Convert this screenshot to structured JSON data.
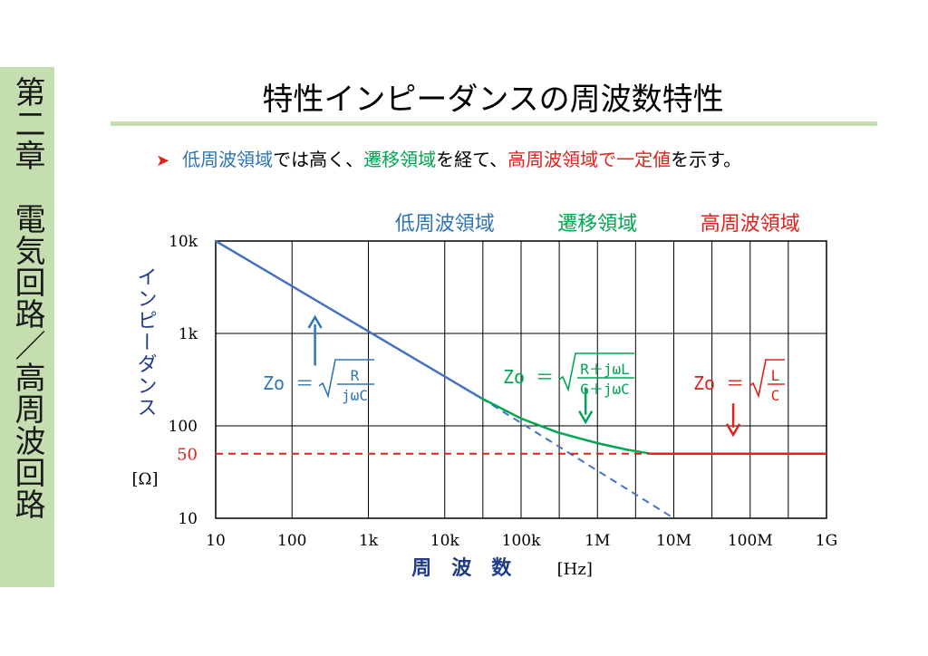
{
  "sidebar": {
    "text": "第二章　電気回路／高周波回路"
  },
  "title": "特性インピーダンスの周波数特性",
  "bullet": {
    "marker": "➤",
    "parts": [
      {
        "text": "低周波領域",
        "color": "#2e75b6"
      },
      {
        "text": "では高く、",
        "color": "#000000"
      },
      {
        "text": "遷移領域",
        "color": "#00a651"
      },
      {
        "text": "を経て、",
        "color": "#000000"
      },
      {
        "text": "高周波領域で一定値",
        "color": "#e0211c"
      },
      {
        "text": "を示す。",
        "color": "#000000"
      }
    ]
  },
  "colors": {
    "blue": "#4472c4",
    "blue_text": "#2e75b6",
    "green": "#00a651",
    "red": "#e0211c",
    "navy": "#1f3c88",
    "grid": "#000000"
  },
  "chart_data": {
    "type": "line",
    "x_scale": "log",
    "y_scale": "log",
    "xlim": [
      10,
      1000000000
    ],
    "ylim": [
      10,
      10000
    ],
    "x_ticks": [
      {
        "value": 10,
        "label": "10"
      },
      {
        "value": 100,
        "label": "100"
      },
      {
        "value": 1000,
        "label": "1k"
      },
      {
        "value": 10000,
        "label": "10k"
      },
      {
        "value": 100000,
        "label": "100k"
      },
      {
        "value": 1000000,
        "label": "1M"
      },
      {
        "value": 10000000,
        "label": "10M"
      },
      {
        "value": 100000000,
        "label": "100M"
      },
      {
        "value": 1000000000,
        "label": "1G"
      }
    ],
    "x_extra_vlines": [
      31600,
      316000,
      3160000,
      31600000,
      316000000
    ],
    "y_ticks": [
      {
        "value": 10000,
        "label": "10k"
      },
      {
        "value": 1000,
        "label": "1k"
      },
      {
        "value": 100,
        "label": "100"
      },
      {
        "value": 10,
        "label": "10"
      }
    ],
    "y_marker": {
      "value": 50,
      "label": "50"
    },
    "xlabel": "周　波　数",
    "xunit": "[Hz]",
    "ylabel": "インピーダンス",
    "yunit": "[Ω]",
    "grid": true,
    "regions": [
      {
        "label": "低周波領域",
        "color": "#2e75b6",
        "center_x": 10000
      },
      {
        "label": "遷移領域",
        "color": "#00a651",
        "center_x": 1000000
      },
      {
        "label": "高周波領域",
        "color": "#e0211c",
        "center_x": 100000000
      }
    ],
    "series": [
      {
        "color": "#4472c4",
        "style": "solid",
        "points": [
          [
            10,
            10000
          ],
          [
            30000,
            200
          ]
        ]
      },
      {
        "color": "#4472c4",
        "style": "dashed",
        "points": [
          [
            30000,
            200
          ],
          [
            10000000,
            10
          ]
        ]
      },
      {
        "color": "#00a651",
        "style": "solid",
        "points": [
          [
            30000,
            200
          ],
          [
            100000,
            120
          ],
          [
            300000,
            85
          ],
          [
            1000000,
            65
          ],
          [
            2500000,
            55
          ],
          [
            5000000,
            50
          ]
        ]
      },
      {
        "color": "#e0211c",
        "style": "solid",
        "points": [
          [
            5000000,
            50
          ],
          [
            1000000000,
            50
          ]
        ]
      },
      {
        "color": "#e0211c",
        "style": "dashed",
        "points": [
          [
            10,
            50
          ],
          [
            5000000,
            50
          ]
        ]
      }
    ],
    "annotations": [
      {
        "name": "formula-low",
        "color": "#2e75b6",
        "lhs": "Zo ＝",
        "num": "R",
        "den": "jωC",
        "arrow": {
          "x": 200,
          "y_from": 450,
          "y_to": 1500
        }
      },
      {
        "name": "formula-mid",
        "color": "#00a651",
        "lhs": "Zo ＝",
        "num": "R＋jωL",
        "den": "G＋jωC",
        "arrow": {
          "x": 700000,
          "y_from": 260,
          "y_to": 110
        }
      },
      {
        "name": "formula-high",
        "color": "#e0211c",
        "lhs": "Zo ＝",
        "num": "L",
        "den": "C",
        "arrow": {
          "x": 60000000,
          "y_from": 175,
          "y_to": 80
        }
      }
    ]
  }
}
